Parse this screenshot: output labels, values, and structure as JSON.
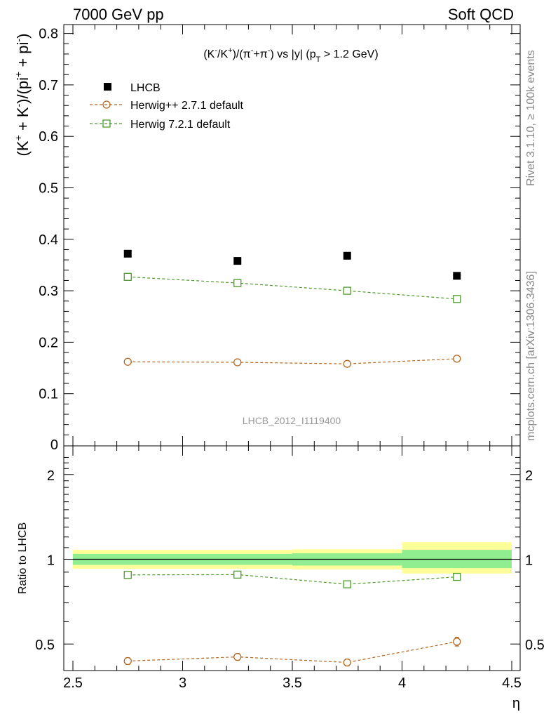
{
  "header": {
    "left": "7000 GeV pp",
    "right": "Soft QCD"
  },
  "side_labels": {
    "rivet": "Rivet 3.1.10, ≥ 100k events",
    "mcplots": "mcplots.cern.ch [arXiv:1306.3436]"
  },
  "chart_data": [
    {
      "type": "scatter",
      "panel": "main",
      "title": "(K⁻/K⁺)/(π⁻+π⁻) vs |y| (p_T > 1.2 GeV)",
      "title_parts": {
        "prefix": "(K",
        "s1": "-",
        "mid1": "/K",
        "s2": "+",
        "mid2": ")/(π",
        "s3": "-",
        "mid3": "+π",
        "s4": "-",
        "mid4": ") vs |y| (p",
        "sub": "T",
        "suffix": " > 1.2 GeV)"
      },
      "ylabel": "(K⁺ + K⁻)/(pi⁺ + pi⁻)",
      "ylabel_parts": {
        "p1": "(K",
        "s1": "+",
        "p2": " + K",
        "s2": "-",
        "p3": ")/(pi",
        "s3": "+",
        "p4": " + pi",
        "s4": "-",
        "p5": ")"
      },
      "xlim": [
        2.5,
        4.5
      ],
      "ylim": [
        0,
        0.82
      ],
      "yticks": [
        0.1,
        0.2,
        0.3,
        0.4,
        0.5,
        0.6,
        0.7,
        0.8
      ],
      "ytick_labels": [
        "0.1",
        "0.2",
        "0.3",
        "0.4",
        "0.5",
        "0.6",
        "0.7",
        "0.8"
      ],
      "y_bottom_label": "0",
      "legend_position": "top-left",
      "watermark": "LHCB_2012_I1119400",
      "x": [
        2.75,
        3.25,
        3.75,
        4.25
      ],
      "series": [
        {
          "name": "LHCB",
          "values": [
            0.372,
            0.358,
            0.368,
            0.329
          ],
          "marker": "filled-square",
          "color": "#000000"
        },
        {
          "name": "Herwig++ 2.7.1 default",
          "values": [
            0.162,
            0.161,
            0.158,
            0.168
          ],
          "marker": "open-circle",
          "color": "#b5651d"
        },
        {
          "name": "Herwig 7.2.1 default",
          "values": [
            0.327,
            0.315,
            0.3,
            0.284
          ],
          "marker": "open-square",
          "color": "#4c9a2a"
        }
      ]
    },
    {
      "type": "scatter",
      "panel": "ratio",
      "ylabel": "Ratio to LHCB",
      "xlabel": "η",
      "xlim": [
        2.5,
        4.5
      ],
      "ylim": [
        0.33,
        2.35
      ],
      "yscale": "log",
      "yticks": [
        0.5,
        1,
        2
      ],
      "ytick_labels": [
        "0.5",
        "1",
        "2"
      ],
      "xticks": [
        2.5,
        3,
        3.5,
        4,
        4.5
      ],
      "xtick_labels": [
        "2.5",
        "3",
        "3.5",
        "4",
        "4.5"
      ],
      "x": [
        2.75,
        3.25,
        3.75,
        4.25
      ],
      "bands": [
        {
          "x0": 2.5,
          "x1": 3.0,
          "stat": [
            0.955,
            1.045
          ],
          "total": [
            0.925,
            1.08
          ]
        },
        {
          "x0": 3.0,
          "x1": 3.5,
          "stat": [
            0.955,
            1.045
          ],
          "total": [
            0.925,
            1.08
          ]
        },
        {
          "x0": 3.5,
          "x1": 4.0,
          "stat": [
            0.95,
            1.05
          ],
          "total": [
            0.92,
            1.085
          ]
        },
        {
          "x0": 4.0,
          "x1": 4.5,
          "stat": [
            0.93,
            1.08
          ],
          "total": [
            0.89,
            1.15
          ]
        }
      ],
      "band_colors": {
        "stat": "#90ee90",
        "total": "#ffff99"
      },
      "series": [
        {
          "name": "Herwig++ 2.7.1 default",
          "values": [
            0.435,
            0.45,
            0.43,
            0.51
          ],
          "errors": [
            0.012,
            0.012,
            0.012,
            0.018
          ],
          "marker": "open-circle",
          "color": "#b5651d"
        },
        {
          "name": "Herwig 7.2.1 default",
          "values": [
            0.88,
            0.882,
            0.815,
            0.866
          ],
          "marker": "open-square",
          "color": "#4c9a2a"
        }
      ]
    }
  ]
}
